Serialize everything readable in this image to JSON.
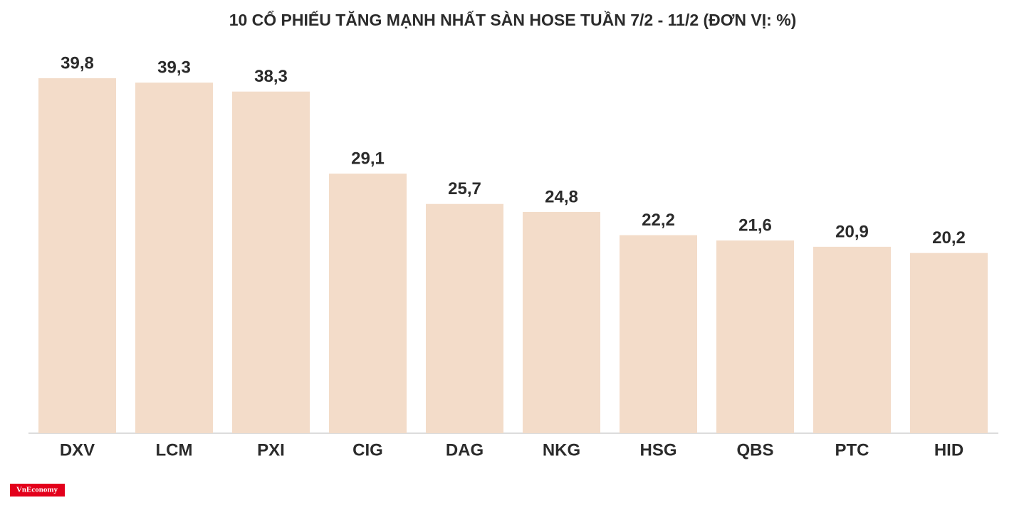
{
  "chart_data": {
    "type": "bar",
    "title": "10 CỔ PHIẾU TĂNG MẠNH NHẤT SÀN HOSE TUẦN 7/2 - 11/2 (ĐƠN VỊ: %)",
    "categories": [
      "DXV",
      "LCM",
      "PXI",
      "CIG",
      "DAG",
      "NKG",
      "HSG",
      "QBS",
      "PTC",
      "HID"
    ],
    "values": [
      39.8,
      39.3,
      38.3,
      29.1,
      25.7,
      24.8,
      22.2,
      21.6,
      20.9,
      20.2
    ],
    "value_labels": [
      "39,8",
      "39,3",
      "38,3",
      "29,1",
      "25,7",
      "24,8",
      "22,2",
      "21,6",
      "20,9",
      "20,2"
    ],
    "color": "#f3dcc9",
    "watermark": "VnEconomy"
  }
}
